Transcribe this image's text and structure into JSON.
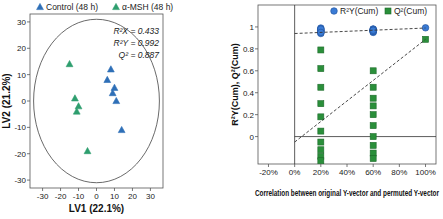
{
  "chart_data": [
    {
      "type": "scatter",
      "xlabel": "LV1 (22.1%)",
      "ylabel": "LV2 (21.2%)",
      "xlim": [
        -37,
        37
      ],
      "ylim": [
        -33,
        33
      ],
      "xticks": [
        -30,
        -20,
        -10,
        0,
        10,
        20,
        30
      ],
      "yticks": [
        -30,
        -20,
        -10,
        0,
        10,
        20,
        30
      ],
      "legend": "top",
      "annotations": [
        "R²X = 0.433",
        "R²Y = 0.992",
        "Q² = 0.887"
      ],
      "ellipse": {
        "rx": 35,
        "ry": 31
      },
      "series": [
        {
          "name": "Control (48 h)",
          "color": "#2e6fb7",
          "marker": "triangle",
          "x": [
            8,
            6,
            10,
            9,
            11,
            14
          ],
          "values": [
            12,
            8,
            5,
            3,
            0,
            -11
          ]
        },
        {
          "name": "α-MSH (48 h)",
          "color": "#2e9e6e",
          "marker": "triangle",
          "x": [
            -15,
            -12,
            -10,
            -11,
            -5
          ],
          "values": [
            14,
            1,
            -2,
            -4,
            -19
          ]
        }
      ]
    },
    {
      "type": "scatter",
      "xlabel": "Correlation between original Y-vector and permuted Y-vector",
      "ylabel": "R²Y(Cum), Q²(Cum)",
      "xlim": [
        -28,
        108
      ],
      "ylim": [
        -0.25,
        1.2
      ],
      "xticks": [
        {
          "value": -20,
          "label": "-20%"
        },
        {
          "value": 0,
          "label": "0%"
        },
        {
          "value": 20,
          "label": "20%"
        },
        {
          "value": 40,
          "label": "40%"
        },
        {
          "value": 60,
          "label": "60%"
        },
        {
          "value": 80,
          "label": "80%"
        },
        {
          "value": 100,
          "label": "100%"
        }
      ],
      "yticks": [
        0,
        0.2,
        0.4,
        0.6,
        0.8,
        1
      ],
      "legend": "top right",
      "series": [
        {
          "name": "R²Y(Cum)",
          "color": "#3a7bd5",
          "marker": "circle",
          "x": [
            20,
            20,
            20,
            20,
            20,
            20,
            20,
            20,
            20,
            20,
            60,
            60,
            60,
            60,
            60,
            60,
            60,
            60,
            60,
            60,
            100
          ],
          "values": [
            0.99,
            0.98,
            0.97,
            0.96,
            0.95,
            0.94,
            0.97,
            0.96,
            0.98,
            0.95,
            0.98,
            0.97,
            0.96,
            0.97,
            0.98,
            0.95,
            0.96,
            0.97,
            0.96,
            0.97,
            0.992
          ]
        },
        {
          "name": "Q²(Cum)",
          "color": "#2a8f3a",
          "marker": "square",
          "x": [
            20,
            20,
            20,
            20,
            20,
            20,
            20,
            20,
            20,
            20,
            60,
            60,
            60,
            60,
            60,
            60,
            60,
            60,
            60,
            60,
            100
          ],
          "values": [
            0.79,
            0.62,
            0.45,
            0.3,
            0.18,
            0.05,
            -0.05,
            -0.12,
            -0.18,
            -0.22,
            0.6,
            0.45,
            0.35,
            0.28,
            0.2,
            0.1,
            0.0,
            -0.08,
            -0.15,
            -0.2,
            0.887
          ]
        },
        {
          "type": "line",
          "line_style": "dashed",
          "color": "#333333",
          "x": [
            0,
            100
          ],
          "values": [
            0.94,
            0.99
          ]
        },
        {
          "type": "line",
          "line_style": "dashed",
          "color": "#333333",
          "x": [
            0,
            100
          ],
          "values": [
            -0.05,
            0.887
          ]
        }
      ]
    }
  ]
}
